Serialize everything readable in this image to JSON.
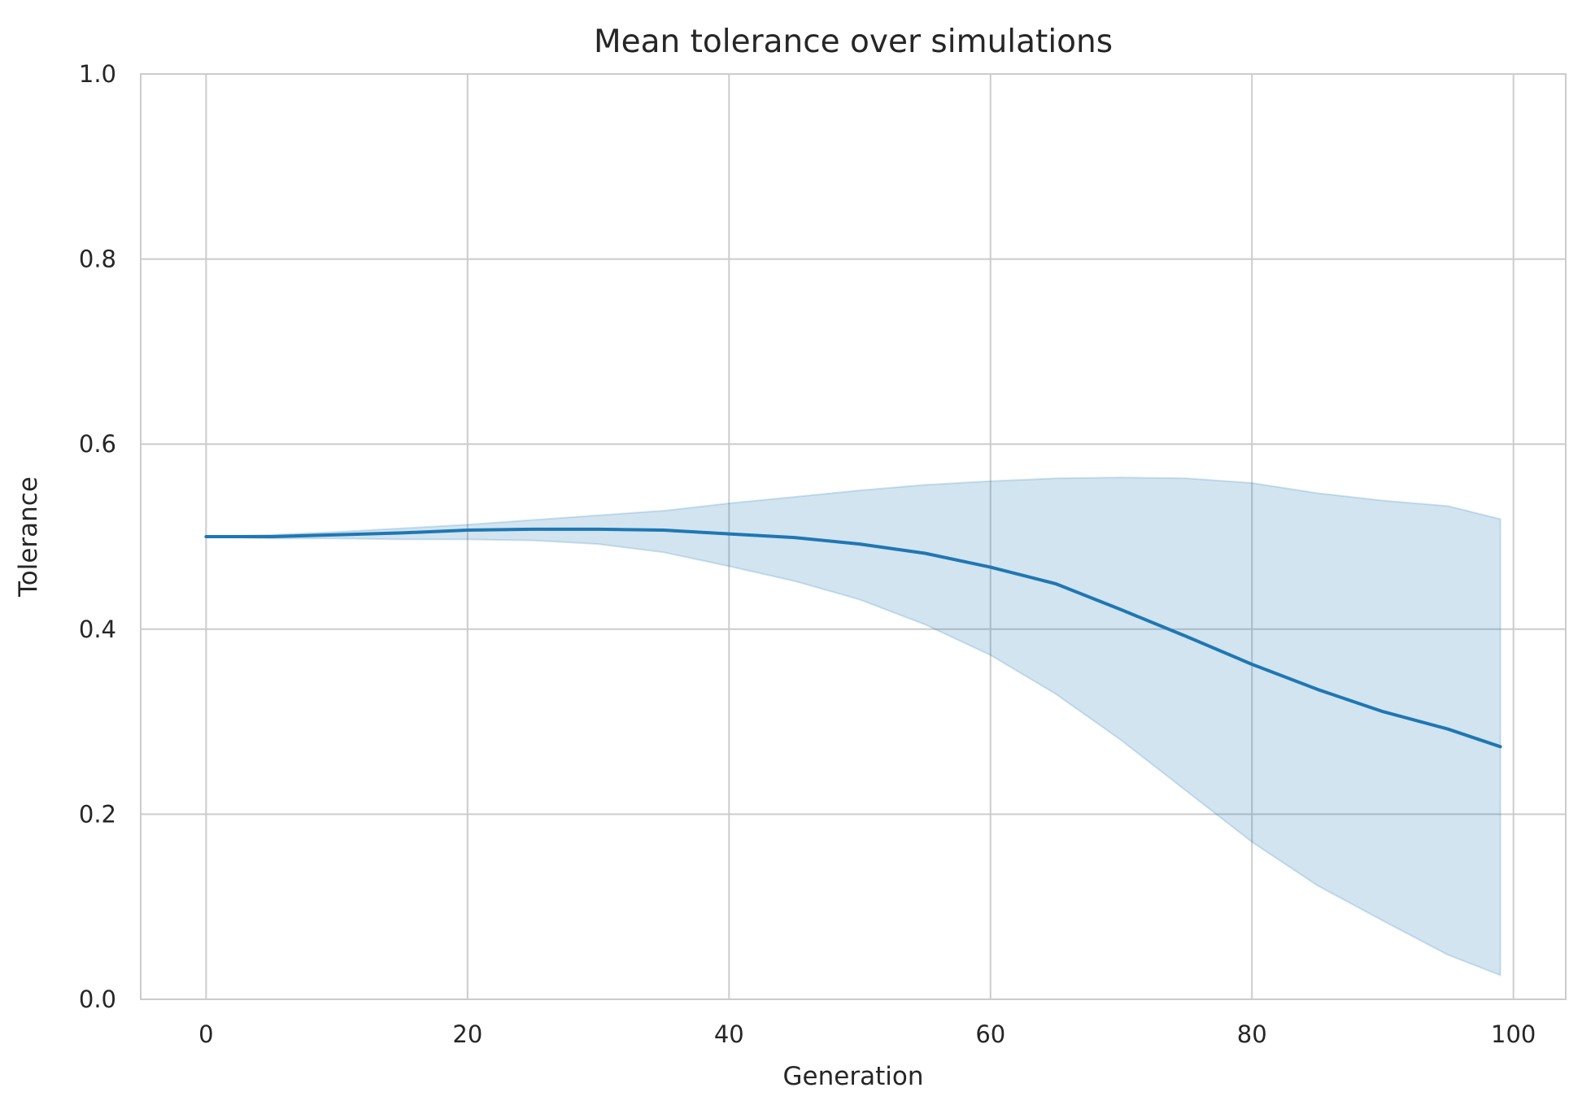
{
  "chart_data": {
    "type": "line",
    "title": "Mean tolerance over simulations",
    "xlabel": "Generation",
    "ylabel": "Tolerance",
    "xlim": [
      -5,
      104
    ],
    "ylim": [
      0,
      1
    ],
    "xticks": [
      0,
      20,
      40,
      60,
      80,
      100
    ],
    "yticks": [
      0.0,
      0.2,
      0.4,
      0.6,
      0.8,
      1.0
    ],
    "xtick_labels": [
      "0",
      "20",
      "40",
      "60",
      "80",
      "100"
    ],
    "ytick_labels": [
      "0.0",
      "0.2",
      "0.4",
      "0.6",
      "0.8",
      "1.0"
    ],
    "grid": true,
    "legend": "none",
    "colors": {
      "line": "#1f77b4",
      "band": "#1f77b4",
      "grid": "#cccccc",
      "spine": "#cccccc"
    },
    "series": [
      {
        "x": [
          0,
          5,
          10,
          15,
          20,
          25,
          30,
          35,
          40,
          45,
          50,
          55,
          60,
          65,
          70,
          75,
          80,
          85,
          90,
          95,
          99
        ],
        "mean": [
          0.5,
          0.5,
          0.502,
          0.504,
          0.507,
          0.508,
          0.508,
          0.507,
          0.503,
          0.499,
          0.492,
          0.482,
          0.467,
          0.449,
          0.421,
          0.392,
          0.362,
          0.335,
          0.311,
          0.292,
          0.273
        ],
        "upper": [
          0.5,
          0.502,
          0.505,
          0.509,
          0.513,
          0.518,
          0.523,
          0.528,
          0.536,
          0.543,
          0.55,
          0.556,
          0.56,
          0.563,
          0.564,
          0.563,
          0.558,
          0.547,
          0.539,
          0.533,
          0.519
        ],
        "lower": [
          0.5,
          0.498,
          0.498,
          0.497,
          0.497,
          0.496,
          0.492,
          0.483,
          0.468,
          0.452,
          0.432,
          0.405,
          0.372,
          0.33,
          0.28,
          0.225,
          0.17,
          0.123,
          0.085,
          0.048,
          0.026
        ]
      }
    ]
  }
}
